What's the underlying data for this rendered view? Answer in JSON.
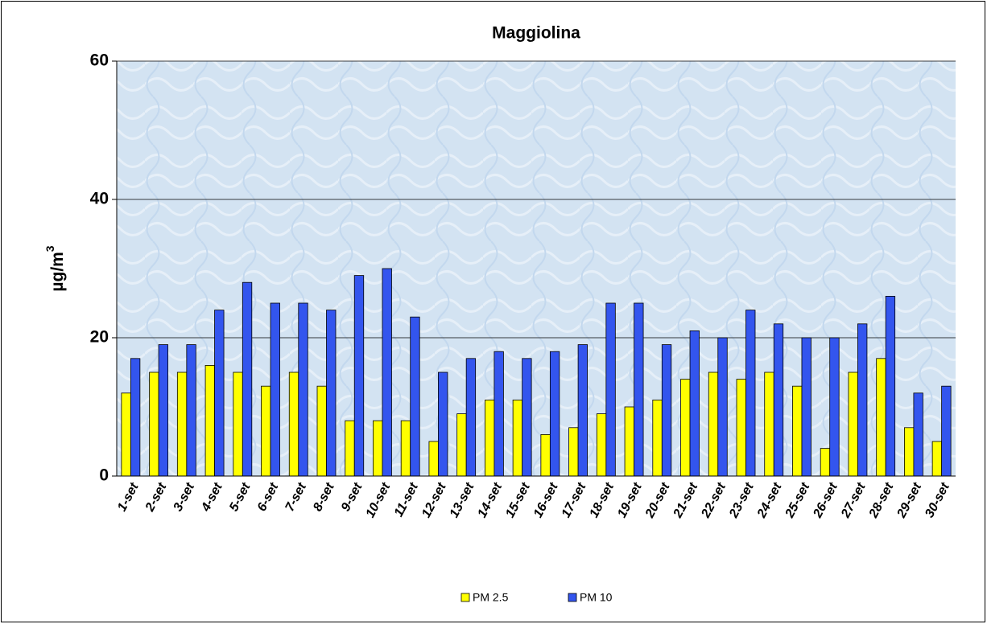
{
  "chart_data": {
    "type": "bar",
    "title": "Maggiolina",
    "y_label": "µg/m",
    "y_label_sup": "3",
    "categories": [
      "1-set",
      "2-set",
      "3-set",
      "4-set",
      "5-set",
      "6-set",
      "7-set",
      "8-set",
      "9-set",
      "10-set",
      "11-set",
      "12-set",
      "13-set",
      "14-set",
      "15-set",
      "16-set",
      "17-set",
      "18-set",
      "19-set",
      "20-set",
      "21-set",
      "22-set",
      "23-set",
      "24-set",
      "25-set",
      "26-set",
      "27-set",
      "28-set",
      "29-set",
      "30-set"
    ],
    "series": [
      {
        "name": "PM 2.5",
        "color": "#ffff00",
        "values": [
          12,
          15,
          15,
          16,
          15,
          13,
          15,
          13,
          8,
          8,
          8,
          5,
          9,
          11,
          11,
          6,
          7,
          9,
          10,
          11,
          14,
          15,
          14,
          15,
          13,
          4,
          15,
          17,
          7,
          5
        ]
      },
      {
        "name": "PM 10",
        "color": "#3355ee",
        "values": [
          17,
          19,
          19,
          24,
          28,
          25,
          25,
          24,
          29,
          30,
          23,
          15,
          17,
          18,
          17,
          18,
          19,
          25,
          25,
          19,
          21,
          20,
          24,
          22,
          20,
          20,
          22,
          26,
          12,
          13
        ]
      }
    ],
    "ylim": [
      0,
      60
    ],
    "yticks": [
      0,
      20,
      40,
      60
    ],
    "grid": true,
    "legend": "bottom"
  }
}
